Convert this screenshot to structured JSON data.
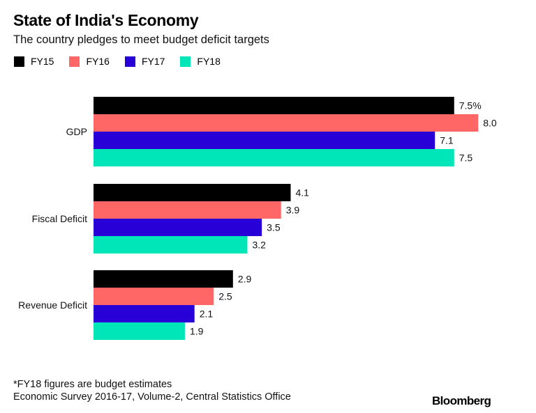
{
  "header": {
    "title": "State of India's Economy",
    "subtitle": "The country pledges to meet budget deficit targets"
  },
  "legend": [
    {
      "label": "FY15",
      "color": "#000000"
    },
    {
      "label": "FY16",
      "color": "#ff6666"
    },
    {
      "label": "FY17",
      "color": "#2800d7"
    },
    {
      "label": "FY18",
      "color": "#00e6b8"
    }
  ],
  "footer": {
    "note": "*FY18 figures are budget estimates",
    "source": "Economic Survey 2016-17, Volume-2, Central Statistics Office",
    "brand": "Bloomberg"
  },
  "chart_data": {
    "type": "bar",
    "orientation": "horizontal",
    "title": "State of India's Economy",
    "subtitle": "The country pledges to meet budget deficit targets",
    "xlabel": "",
    "ylabel": "",
    "unit": "%",
    "grid": false,
    "legend_position": "top-left",
    "categories": [
      "GDP",
      "Fiscal Deficit",
      "Revenue Deficit"
    ],
    "series": [
      {
        "name": "FY15",
        "color": "#000000",
        "values": [
          7.5,
          4.1,
          2.9
        ],
        "labels": [
          "7.5%",
          "4.1",
          "2.9"
        ]
      },
      {
        "name": "FY16",
        "color": "#ff6666",
        "values": [
          8.0,
          3.9,
          2.5
        ],
        "labels": [
          "8.0",
          "3.9",
          "2.5"
        ]
      },
      {
        "name": "FY17",
        "color": "#2800d7",
        "values": [
          7.1,
          3.5,
          2.1
        ],
        "labels": [
          "7.1",
          "3.5",
          "2.1"
        ]
      },
      {
        "name": "FY18",
        "color": "#00e6b8",
        "values": [
          7.5,
          3.2,
          1.9
        ],
        "labels": [
          "7.5",
          "3.2",
          "1.9"
        ]
      }
    ],
    "xlim": [
      0,
      8.0
    ]
  }
}
